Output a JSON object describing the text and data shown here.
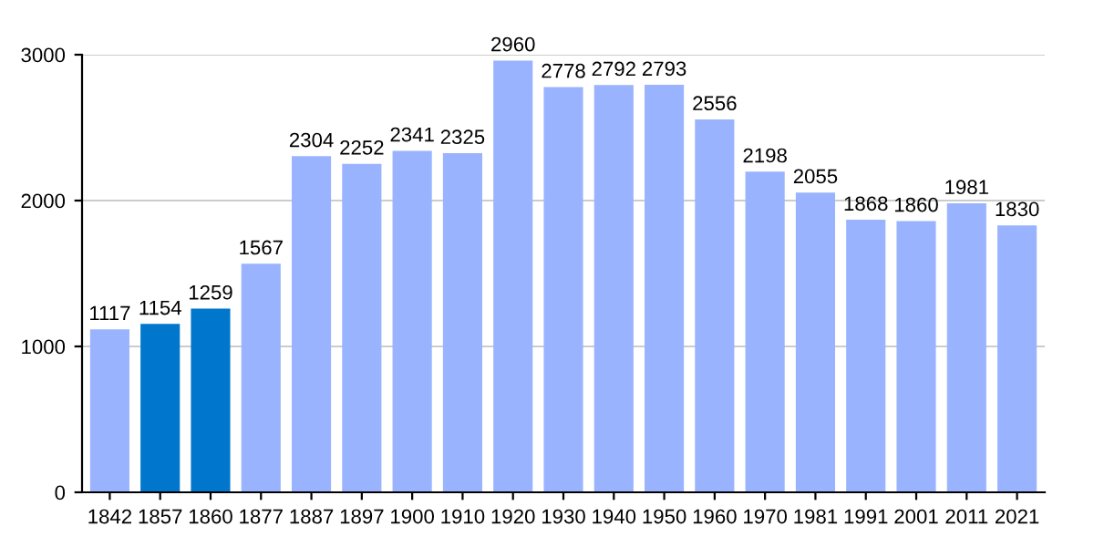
{
  "chart_data": {
    "type": "bar",
    "categories": [
      "1842",
      "1857",
      "1860",
      "1877",
      "1887",
      "1897",
      "1900",
      "1910",
      "1920",
      "1930",
      "1940",
      "1950",
      "1960",
      "1970",
      "1981",
      "1991",
      "2001",
      "2011",
      "2021"
    ],
    "values": [
      1117,
      1154,
      1259,
      1567,
      2304,
      2252,
      2341,
      2325,
      2960,
      2778,
      2792,
      2793,
      2556,
      2198,
      2055,
      1868,
      1860,
      1981,
      1830
    ],
    "colors": [
      "#99b3ff",
      "#0077cc",
      "#0077cc",
      "#99b3ff",
      "#99b3ff",
      "#99b3ff",
      "#99b3ff",
      "#99b3ff",
      "#99b3ff",
      "#99b3ff",
      "#99b3ff",
      "#99b3ff",
      "#99b3ff",
      "#99b3ff",
      "#99b3ff",
      "#99b3ff",
      "#99b3ff",
      "#99b3ff",
      "#99b3ff"
    ],
    "ylim": [
      0,
      3000
    ],
    "yticks": [
      0,
      1000,
      2000,
      3000
    ],
    "grid": "y",
    "data_labels": true
  }
}
